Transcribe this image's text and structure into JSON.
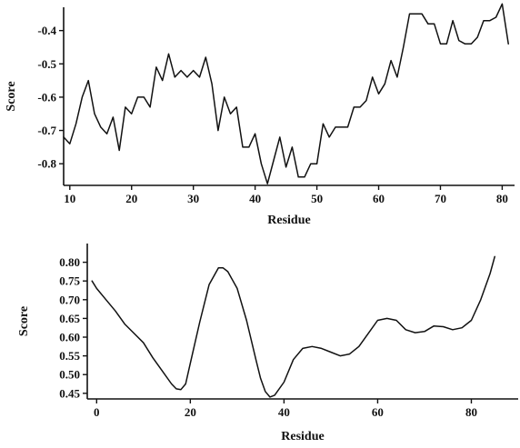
{
  "chart_data": [
    {
      "type": "line",
      "xlabel": "Residue",
      "ylabel": "Score",
      "xlim": [
        9,
        82
      ],
      "ylim": [
        -0.865,
        -0.33
      ],
      "xticks": [
        10,
        20,
        30,
        40,
        50,
        60,
        70,
        80
      ],
      "yticks": [
        -0.8,
        -0.7,
        -0.6,
        -0.5,
        -0.4
      ],
      "ytick_labels": [
        "-0.8",
        "-0.7",
        "-0.6",
        "-0.5",
        "-0.4"
      ],
      "grid": false,
      "series": [
        {
          "x": [
            9,
            10,
            11,
            12,
            13,
            14,
            15,
            16,
            17,
            18,
            19,
            20,
            21,
            22,
            23,
            24,
            25,
            26,
            27,
            28,
            29,
            30,
            31,
            32,
            33,
            34,
            35,
            36,
            37,
            38,
            39,
            40,
            41,
            42,
            43,
            44,
            45,
            46,
            47,
            48,
            49,
            50,
            51,
            52,
            53,
            54,
            55,
            56,
            57,
            58,
            59,
            60,
            61,
            62,
            63,
            64,
            65,
            66,
            67,
            68,
            69,
            70,
            71,
            72,
            73,
            74,
            75,
            76,
            77,
            78,
            79,
            80,
            81
          ],
          "y": [
            -0.72,
            -0.74,
            -0.68,
            -0.6,
            -0.55,
            -0.65,
            -0.69,
            -0.71,
            -0.66,
            -0.76,
            -0.63,
            -0.65,
            -0.6,
            -0.6,
            -0.63,
            -0.51,
            -0.55,
            -0.47,
            -0.54,
            -0.52,
            -0.54,
            -0.52,
            -0.54,
            -0.48,
            -0.56,
            -0.7,
            -0.6,
            -0.65,
            -0.63,
            -0.75,
            -0.75,
            -0.71,
            -0.8,
            -0.86,
            -0.79,
            -0.72,
            -0.81,
            -0.75,
            -0.84,
            -0.84,
            -0.8,
            -0.8,
            -0.68,
            -0.72,
            -0.69,
            -0.69,
            -0.69,
            -0.63,
            -0.63,
            -0.61,
            -0.54,
            -0.59,
            -0.56,
            -0.49,
            -0.54,
            -0.45,
            -0.35,
            -0.35,
            -0.35,
            -0.38,
            -0.38,
            -0.44,
            -0.44,
            -0.37,
            -0.43,
            -0.44,
            -0.44,
            -0.42,
            -0.37,
            -0.37,
            -0.36,
            -0.32,
            -0.44
          ]
        }
      ]
    },
    {
      "type": "line",
      "xlabel": "Residue",
      "ylabel": "Score",
      "xlim": [
        -2,
        90
      ],
      "ylim": [
        0.435,
        0.85
      ],
      "xticks": [
        0,
        20,
        40,
        60,
        80
      ],
      "yticks": [
        0.45,
        0.5,
        0.55,
        0.6,
        0.65,
        0.7,
        0.75,
        0.8
      ],
      "ytick_labels": [
        "0.45",
        "0.50",
        "0.55",
        "0.60",
        "0.65",
        "0.70",
        "0.75",
        "0.80"
      ],
      "grid": false,
      "series": [
        {
          "x": [
            -1,
            0,
            2,
            4,
            6,
            8,
            10,
            12,
            14,
            16,
            17,
            18,
            19,
            20,
            22,
            24,
            26,
            27,
            28,
            30,
            32,
            34,
            35,
            36,
            37,
            38,
            40,
            42,
            44,
            46,
            48,
            50,
            52,
            54,
            56,
            58,
            60,
            62,
            64,
            66,
            68,
            70,
            72,
            74,
            76,
            78,
            80,
            82,
            84,
            85
          ],
          "y": [
            0.75,
            0.73,
            0.7,
            0.67,
            0.635,
            0.61,
            0.585,
            0.545,
            0.51,
            0.475,
            0.462,
            0.46,
            0.475,
            0.53,
            0.64,
            0.74,
            0.785,
            0.785,
            0.775,
            0.73,
            0.645,
            0.54,
            0.49,
            0.455,
            0.44,
            0.445,
            0.48,
            0.54,
            0.57,
            0.575,
            0.57,
            0.56,
            0.55,
            0.555,
            0.575,
            0.61,
            0.645,
            0.65,
            0.645,
            0.62,
            0.612,
            0.615,
            0.63,
            0.628,
            0.62,
            0.625,
            0.645,
            0.7,
            0.77,
            0.815
          ]
        }
      ]
    }
  ]
}
